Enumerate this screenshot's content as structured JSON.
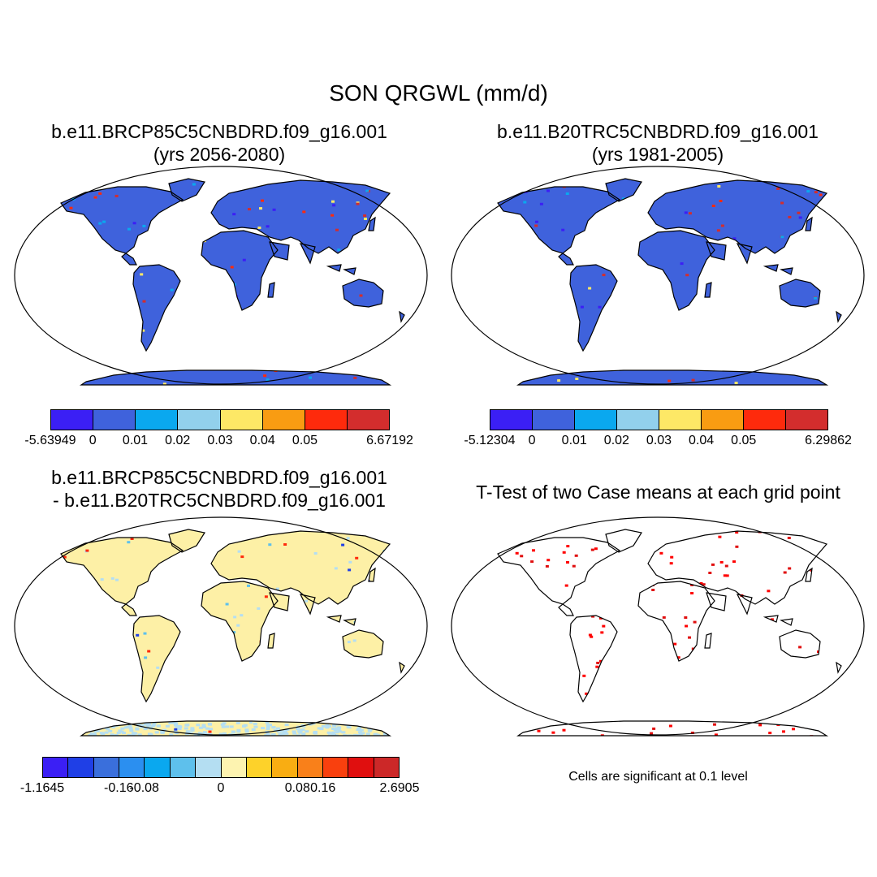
{
  "title": "SON QRGWL (mm/d)",
  "panels": {
    "top_left": {
      "line1": "b.e11.BRCP85C5CNBDRD.f09_g16.001",
      "line2": "(yrs 2056-2080)",
      "fill_color": "#3f62dc",
      "colorbar": {
        "labels": [
          "-5.63949",
          "0",
          "0.01",
          "0.02",
          "0.03",
          "0.04",
          "0.05",
          "6.67192"
        ],
        "colors": [
          "#3b1ff5",
          "#3f62dc",
          "#0aa8ef",
          "#92d0ec",
          "#fde866",
          "#f99c12",
          "#fe2a0c",
          "#d32d2d"
        ]
      }
    },
    "top_right": {
      "line1": "b.e11.B20TRC5CNBDRD.f09_g16.001",
      "line2": "(yrs 1981-2005)",
      "fill_color": "#3f62dc",
      "colorbar": {
        "labels": [
          "-5.12304",
          "0",
          "0.01",
          "0.02",
          "0.03",
          "0.04",
          "0.05",
          "6.29862"
        ],
        "colors": [
          "#3b1ff5",
          "#3f62dc",
          "#0aa8ef",
          "#92d0ec",
          "#fde866",
          "#f99c12",
          "#fe2a0c",
          "#d32d2d"
        ]
      }
    },
    "bottom_left": {
      "line1": "b.e11.BRCP85C5CNBDRD.f09_g16.001",
      "line2": "- b.e11.B20TRC5CNBDRD.f09_g16.001",
      "fill_color": "#fdf0a6",
      "colorbar": {
        "labels": [
          "-1.1645",
          "-0.16",
          "-0.08",
          "0",
          "0.08",
          "0.16",
          "2.6905"
        ],
        "colors": [
          "#3b1ff5",
          "#1f3fe6",
          "#3a6fdc",
          "#2b8ff0",
          "#0aa8ef",
          "#5ec0ec",
          "#b4def2",
          "#fdf3b0",
          "#fdd22a",
          "#f9ad12",
          "#f9801a",
          "#f9400e",
          "#e00f0f",
          "#cc2828"
        ]
      }
    },
    "bottom_right": {
      "line1": "T-Test of two Case means at each grid point",
      "note": "Cells are significant at 0.1 level",
      "fill_color": "#ffffff"
    }
  }
}
